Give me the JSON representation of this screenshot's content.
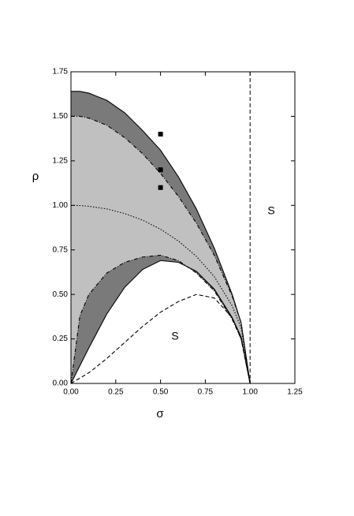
{
  "chart_data": {
    "type": "line",
    "xlabel": "σ",
    "ylabel": "ρ",
    "xlim": [
      0,
      1.25
    ],
    "ylim": [
      0,
      1.75
    ],
    "xticks": [
      {
        "value": 0,
        "label": "0.00"
      },
      {
        "value": 0.25,
        "label": "0.25"
      },
      {
        "value": 0.5,
        "label": "0.50"
      },
      {
        "value": 0.75,
        "label": "0.75"
      },
      {
        "value": 1,
        "label": "1.00"
      },
      {
        "value": 1.25,
        "label": "1.25"
      }
    ],
    "yticks": [
      {
        "value": 0,
        "label": "0.00"
      },
      {
        "value": 0.25,
        "label": "0.25"
      },
      {
        "value": 0.5,
        "label": "0.50"
      },
      {
        "value": 0.75,
        "label": "0.75"
      },
      {
        "value": 1,
        "label": "1.00"
      },
      {
        "value": 1.25,
        "label": "1.25"
      },
      {
        "value": 1.5,
        "label": "1.50"
      },
      {
        "value": 1.75,
        "label": "1.75"
      }
    ],
    "x": [
      0,
      0.05,
      0.1,
      0.2,
      0.3,
      0.4,
      0.5,
      0.6,
      0.7,
      0.8,
      0.9,
      0.95,
      1
    ],
    "series": [
      {
        "color": "#000000",
        "dash": "solid",
        "values": [
          1.64,
          1.64,
          1.63,
          1.59,
          1.52,
          1.42,
          1.31,
          1.16,
          0.98,
          0.76,
          0.5,
          0.34,
          0
        ]
      },
      {
        "color": "#000000",
        "dash": "dashdot",
        "values": [
          1.5,
          1.5,
          1.49,
          1.45,
          1.38,
          1.29,
          1.18,
          1.05,
          0.9,
          0.72,
          0.49,
          0.34,
          0
        ]
      },
      {
        "color": "#000000",
        "dash": "dotted",
        "values": [
          1,
          0.999,
          0.995,
          0.98,
          0.954,
          0.917,
          0.866,
          0.8,
          0.714,
          0.6,
          0.436,
          0.312,
          0
        ]
      },
      {
        "color": "#000000",
        "dash": "dashdot",
        "values": [
          0,
          0.38,
          0.5,
          0.62,
          0.68,
          0.71,
          0.72,
          0.69,
          0.62,
          0.52,
          0.36,
          0.25,
          0
        ]
      },
      {
        "color": "#000000",
        "dash": "solid",
        "values": [
          0,
          0.1,
          0.2,
          0.39,
          0.54,
          0.64,
          0.69,
          0.68,
          0.63,
          0.53,
          0.37,
          0.26,
          0
        ]
      },
      {
        "color": "#000000",
        "dash": "dashed",
        "values": [
          0,
          0.03,
          0.06,
          0.14,
          0.23,
          0.32,
          0.4,
          0.46,
          0.5,
          0.48,
          0.37,
          0.25,
          0
        ]
      }
    ],
    "fills": [
      {
        "between": [
          0,
          1
        ],
        "color": "#7a7a7a"
      },
      {
        "between": [
          1,
          3
        ],
        "color": "#c0c0c0"
      },
      {
        "between": [
          3,
          4
        ],
        "color": "#7a7a7a"
      }
    ],
    "points": {
      "color": "#000000",
      "x": [
        0.5,
        0.5,
        0.5
      ],
      "values": [
        1.4,
        1.2,
        1.1
      ]
    },
    "vlines": [
      1
    ],
    "annotations": [
      "S",
      "S"
    ]
  }
}
